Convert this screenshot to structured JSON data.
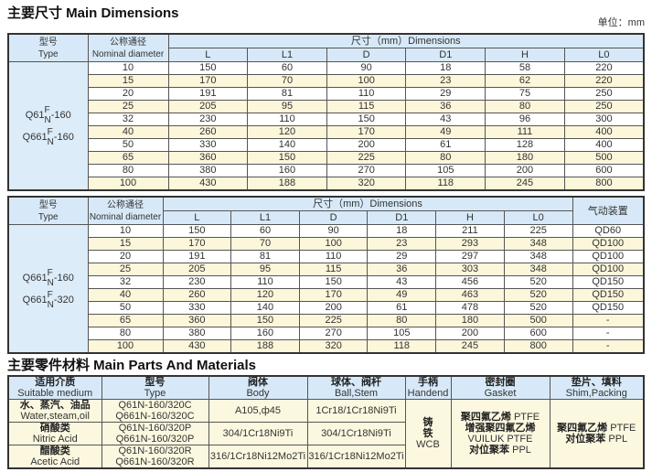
{
  "dimensions": {
    "title": "主要尺寸  Main Dimensions",
    "unit": "单位：mm",
    "col_type": "型号",
    "col_type_en": "Type",
    "col_dn": "公称通径",
    "col_dn_en1": "Nominal",
    "col_dn_en2": "diameter",
    "col_dim": "尺寸（mm）Dimensions",
    "cols": [
      "L",
      "L1",
      "D",
      "D1",
      "H",
      "L0"
    ],
    "col_actuator": "气动装置",
    "table1_types": [
      {
        "base": "Q61",
        "sup": "F",
        "sub": "N",
        "suffix": "-160"
      },
      {
        "base": "Q661",
        "sup": "F",
        "sub": "N",
        "suffix": "-160"
      }
    ],
    "table1_rows": [
      [
        "10",
        "150",
        "60",
        "90",
        "18",
        "58",
        "220"
      ],
      [
        "15",
        "170",
        "70",
        "100",
        "23",
        "62",
        "220"
      ],
      [
        "20",
        "191",
        "81",
        "110",
        "29",
        "75",
        "250"
      ],
      [
        "25",
        "205",
        "95",
        "115",
        "36",
        "80",
        "250"
      ],
      [
        "32",
        "230",
        "110",
        "150",
        "43",
        "96",
        "300"
      ],
      [
        "40",
        "260",
        "120",
        "170",
        "49",
        "111",
        "400"
      ],
      [
        "50",
        "330",
        "140",
        "200",
        "61",
        "128",
        "400"
      ],
      [
        "65",
        "360",
        "150",
        "225",
        "80",
        "180",
        "500"
      ],
      [
        "80",
        "380",
        "160",
        "270",
        "105",
        "200",
        "600"
      ],
      [
        "100",
        "430",
        "188",
        "320",
        "118",
        "245",
        "800"
      ]
    ],
    "table2_types": [
      {
        "base": "Q661",
        "sup": "F",
        "sub": "N",
        "suffix": "-160"
      },
      {
        "base": "Q661",
        "sup": "F",
        "sub": "N",
        "suffix": "-320"
      }
    ],
    "table2_rows": [
      [
        "10",
        "150",
        "60",
        "90",
        "18",
        "211",
        "225",
        "QD60"
      ],
      [
        "15",
        "170",
        "70",
        "100",
        "23",
        "293",
        "348",
        "QD100"
      ],
      [
        "20",
        "191",
        "81",
        "110",
        "29",
        "297",
        "348",
        "QD100"
      ],
      [
        "25",
        "205",
        "95",
        "115",
        "36",
        "303",
        "348",
        "QD100"
      ],
      [
        "32",
        "230",
        "110",
        "150",
        "43",
        "456",
        "520",
        "QD150"
      ],
      [
        "40",
        "260",
        "120",
        "170",
        "49",
        "463",
        "520",
        "QD150"
      ],
      [
        "50",
        "330",
        "140",
        "200",
        "61",
        "478",
        "520",
        "QD150"
      ],
      [
        "65",
        "360",
        "150",
        "225",
        "80",
        "180",
        "500",
        "-"
      ],
      [
        "80",
        "380",
        "160",
        "270",
        "105",
        "200",
        "600",
        "-"
      ],
      [
        "100",
        "430",
        "188",
        "320",
        "118",
        "245",
        "800",
        "-"
      ]
    ]
  },
  "materials": {
    "title": "主要零件材料  Main Parts And Materials",
    "headers": [
      [
        "适用介质",
        "Suitable medium"
      ],
      [
        "型号",
        "Type"
      ],
      [
        "阀体",
        "Body"
      ],
      [
        "球体、阀杆",
        "Ball,Stem"
      ],
      [
        "手柄",
        "Handend"
      ],
      [
        "密封圈",
        "Gasket"
      ],
      [
        "垫片、填料",
        "Shim,Packing"
      ]
    ],
    "rows": [
      {
        "medium_cn": "水、蒸汽、油品",
        "medium_en": "Water,steam,oil",
        "type1": "Q61N-160/320C",
        "type2": "Q661N-160/320C",
        "body": "A105,ф45",
        "stem": "1Cr18/1Cr18Ni9Ti"
      },
      {
        "medium_cn": "硝酸类",
        "medium_en": "Nitric Acid",
        "type1": "Q61N-160/320P",
        "type2": "Q661N-160/320P",
        "body": "304/1Cr18Ni9Ti",
        "stem": "304/1Cr18Ni9Ti"
      },
      {
        "medium_cn": "醋酸类",
        "medium_en": "Acetic Acid",
        "type1": "Q61N-160/320R",
        "type2": "Q661N-160/320R",
        "body": "316/1Cr18Ni12Mo2Ti",
        "stem": "316/1Cr18Ni12Mo2Ti"
      }
    ],
    "handend": [
      "铸",
      "铁",
      "WCB"
    ],
    "gasket": [
      [
        "聚四氟乙烯",
        "PTFE"
      ],
      [
        "增强聚四氟乙烯",
        ""
      ],
      [
        "VUILUK PTFE",
        ""
      ],
      [
        "对位聚苯",
        "PPL"
      ]
    ],
    "packing": [
      [
        "聚四氟乙烯",
        "PTFE"
      ],
      [
        "对位聚苯",
        "PPL"
      ]
    ]
  }
}
